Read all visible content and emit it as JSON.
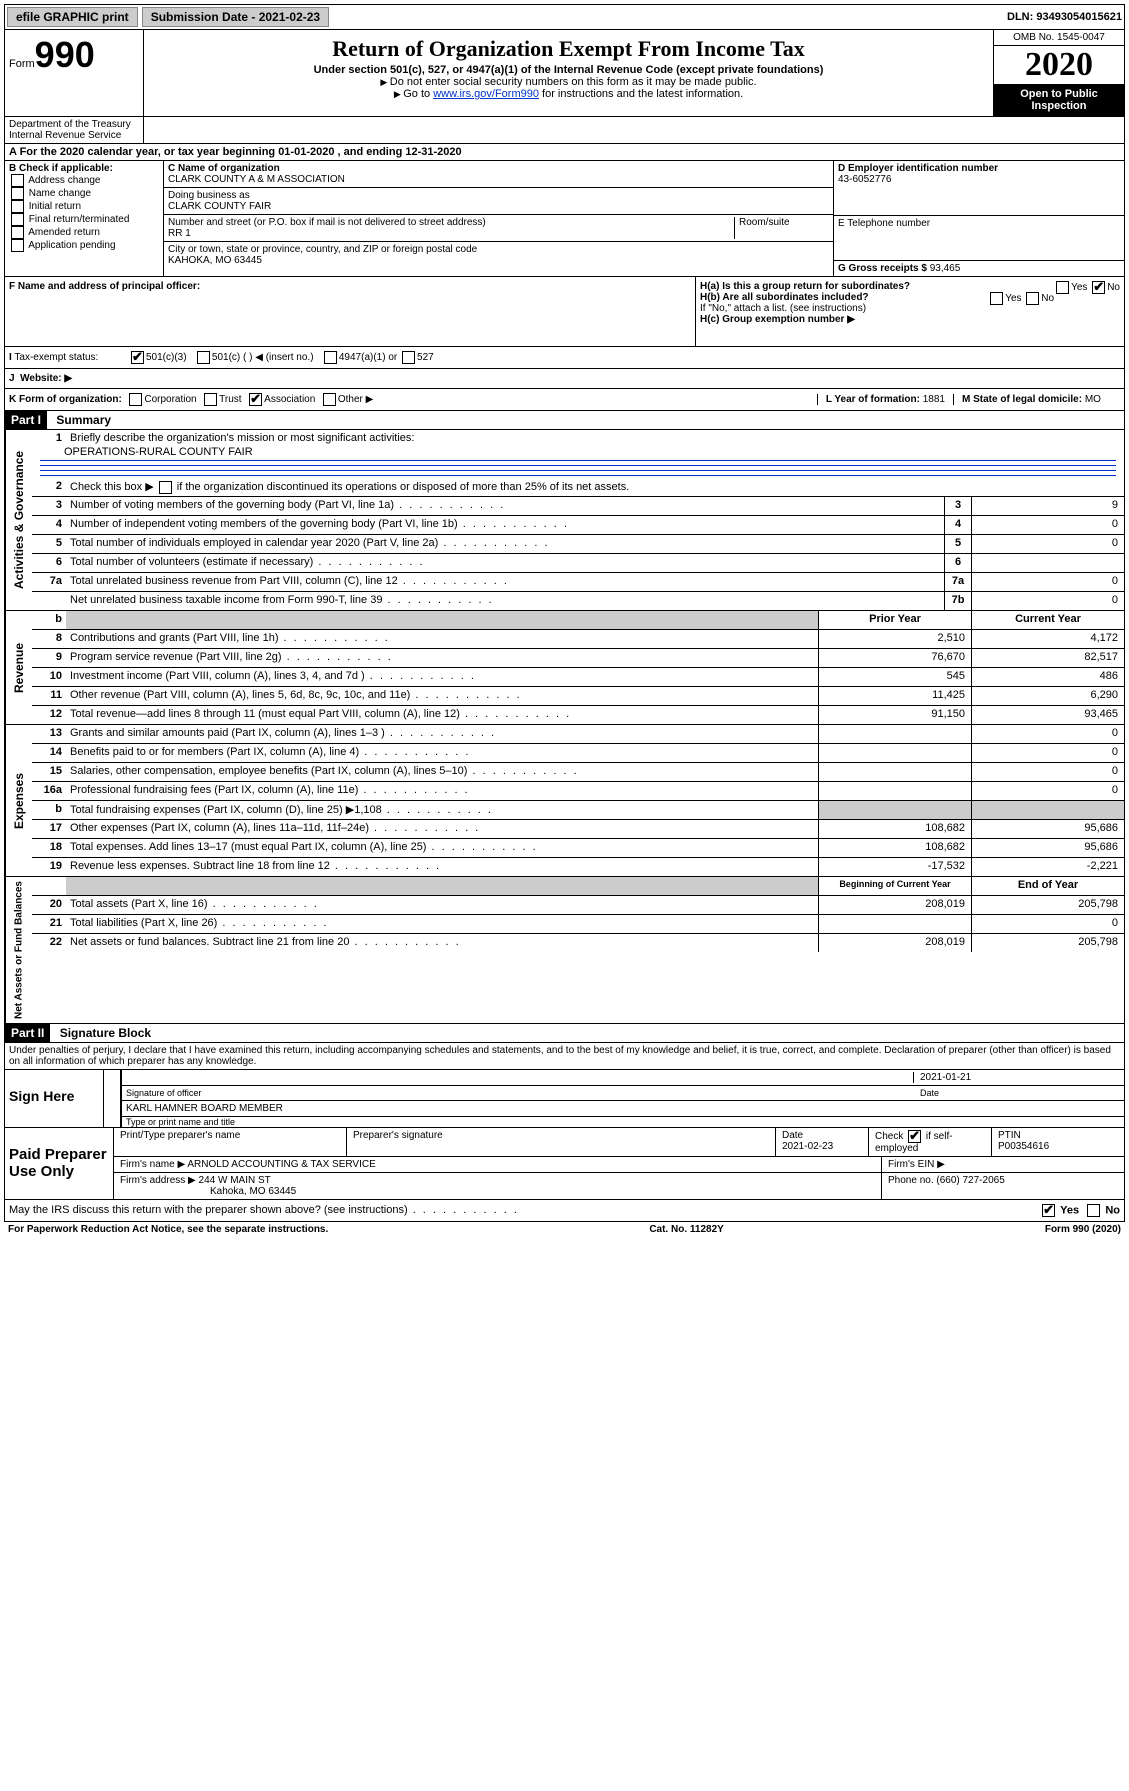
{
  "topbar": {
    "efile": "efile GRAPHIC print",
    "submission_label": "Submission Date - 2021-02-23",
    "dln": "DLN: 93493054015621"
  },
  "header": {
    "form_label": "Form",
    "form_num": "990",
    "title": "Return of Organization Exempt From Income Tax",
    "sub": "Under section 501(c), 527, or 4947(a)(1) of the Internal Revenue Code (except private foundations)",
    "note1": "Do not enter social security numbers on this form as it may be made public.",
    "note2_pre": "Go to ",
    "note2_link": "www.irs.gov/Form990",
    "note2_post": " for instructions and the latest information.",
    "dept": "Department of the Treasury\nInternal Revenue Service",
    "omb": "OMB No. 1545-0047",
    "year": "2020",
    "inspect": "Open to Public Inspection"
  },
  "row_a": "A For the 2020 calendar year, or tax year beginning 01-01-2020    , and ending 12-31-2020",
  "col_b": {
    "label": "B Check if applicable:",
    "opts": [
      "Address change",
      "Name change",
      "Initial return",
      "Final return/terminated",
      "Amended return",
      "Application pending"
    ]
  },
  "col_c": {
    "name_lbl": "C Name of organization",
    "name": "CLARK COUNTY A & M ASSOCIATION",
    "dba_lbl": "Doing business as",
    "dba": "CLARK COUNTY FAIR",
    "addr_lbl": "Number and street (or P.O. box if mail is not delivered to street address)",
    "addr": "RR 1",
    "room_lbl": "Room/suite",
    "city_lbl": "City or town, state or province, country, and ZIP or foreign postal code",
    "city": "KAHOKA, MO  63445"
  },
  "col_d": {
    "ein_lbl": "D Employer identification number",
    "ein": "43-6052776",
    "phone_lbl": "E Telephone number",
    "gross_lbl": "G Gross receipts $ ",
    "gross": "93,465"
  },
  "row_f": {
    "f_lbl": "F  Name and address of principal officer:",
    "ha": "H(a)  Is this a group return for subordinates?",
    "hb": "H(b)  Are all subordinates included?",
    "hb_note": "If \"No,\" attach a list. (see instructions)",
    "hc": "H(c)  Group exemption number ▶"
  },
  "row_i": {
    "tax_lbl": "Tax-exempt status:",
    "o501c3": "501(c)(3)",
    "o501c": "501(c) (  ) ◀ (insert no.)",
    "o4947": "4947(a)(1) or",
    "o527": "527"
  },
  "row_j": "Website: ▶",
  "row_k": {
    "k_lbl": "K Form of organization:",
    "corp": "Corporation",
    "trust": "Trust",
    "assoc": "Association",
    "other": "Other ▶",
    "l_lbl": "L Year of formation: ",
    "l_val": "1881",
    "m_lbl": "M State of legal domicile: ",
    "m_val": "MO"
  },
  "part1": {
    "hdr": "Part I",
    "title": "Summary",
    "l1": "Briefly describe the organization's mission or most significant activities:",
    "l1_val": "OPERATIONS-RURAL COUNTY FAIR",
    "l2": "Check this box ▶         if the organization discontinued its operations or disposed of more than 25% of its net assets.",
    "lines": [
      {
        "n": "3",
        "t": "Number of voting members of the governing body (Part VI, line 1a)",
        "c": "3",
        "v": "9"
      },
      {
        "n": "4",
        "t": "Number of independent voting members of the governing body (Part VI, line 1b)",
        "c": "4",
        "v": "0"
      },
      {
        "n": "5",
        "t": "Total number of individuals employed in calendar year 2020 (Part V, line 2a)",
        "c": "5",
        "v": "0"
      },
      {
        "n": "6",
        "t": "Total number of volunteers (estimate if necessary)",
        "c": "6",
        "v": ""
      },
      {
        "n": "7a",
        "t": "Total unrelated business revenue from Part VIII, column (C), line 12",
        "c": "7a",
        "v": "0"
      },
      {
        "n": "",
        "t": "Net unrelated business taxable income from Form 990-T, line 39",
        "c": "7b",
        "v": "0"
      }
    ],
    "col_hdr_b": "b",
    "col_hdr_prior": "Prior Year",
    "col_hdr_curr": "Current Year",
    "rev": [
      {
        "n": "8",
        "t": "Contributions and grants (Part VIII, line 1h)",
        "p": "2,510",
        "c": "4,172"
      },
      {
        "n": "9",
        "t": "Program service revenue (Part VIII, line 2g)",
        "p": "76,670",
        "c": "82,517"
      },
      {
        "n": "10",
        "t": "Investment income (Part VIII, column (A), lines 3, 4, and 7d )",
        "p": "545",
        "c": "486"
      },
      {
        "n": "11",
        "t": "Other revenue (Part VIII, column (A), lines 5, 6d, 8c, 9c, 10c, and 11e)",
        "p": "11,425",
        "c": "6,290"
      },
      {
        "n": "12",
        "t": "Total revenue—add lines 8 through 11 (must equal Part VIII, column (A), line 12)",
        "p": "91,150",
        "c": "93,465"
      }
    ],
    "exp": [
      {
        "n": "13",
        "t": "Grants and similar amounts paid (Part IX, column (A), lines 1–3 )",
        "p": "",
        "c": "0"
      },
      {
        "n": "14",
        "t": "Benefits paid to or for members (Part IX, column (A), line 4)",
        "p": "",
        "c": "0"
      },
      {
        "n": "15",
        "t": "Salaries, other compensation, employee benefits (Part IX, column (A), lines 5–10)",
        "p": "",
        "c": "0"
      },
      {
        "n": "16a",
        "t": "Professional fundraising fees (Part IX, column (A), line 11e)",
        "p": "",
        "c": "0"
      },
      {
        "n": "b",
        "t": "Total fundraising expenses (Part IX, column (D), line 25) ▶1,108",
        "p": "grey",
        "c": "grey"
      },
      {
        "n": "17",
        "t": "Other expenses (Part IX, column (A), lines 11a–11d, 11f–24e)",
        "p": "108,682",
        "c": "95,686"
      },
      {
        "n": "18",
        "t": "Total expenses. Add lines 13–17 (must equal Part IX, column (A), line 25)",
        "p": "108,682",
        "c": "95,686"
      },
      {
        "n": "19",
        "t": "Revenue less expenses. Subtract line 18 from line 12",
        "p": "-17,532",
        "c": "-2,221"
      }
    ],
    "col_hdr_beg": "Beginning of Current Year",
    "col_hdr_end": "End of Year",
    "net": [
      {
        "n": "20",
        "t": "Total assets (Part X, line 16)",
        "p": "208,019",
        "c": "205,798"
      },
      {
        "n": "21",
        "t": "Total liabilities (Part X, line 26)",
        "p": "",
        "c": "0"
      },
      {
        "n": "22",
        "t": "Net assets or fund balances. Subtract line 21 from line 20",
        "p": "208,019",
        "c": "205,798"
      }
    ]
  },
  "vtabs": {
    "gov": "Activities & Governance",
    "rev": "Revenue",
    "exp": "Expenses",
    "net": "Net Assets or Fund Balances"
  },
  "part2": {
    "hdr": "Part II",
    "title": "Signature Block",
    "perjury": "Under penalties of perjury, I declare that I have examined this return, including accompanying schedules and statements, and to the best of my knowledge and belief, it is true, correct, and complete. Declaration of preparer (other than officer) is based on all information of which preparer has any knowledge."
  },
  "sign": {
    "here": "Sign Here",
    "sig_off": "Signature of officer",
    "date1": "2021-01-21",
    "date_lbl": "Date",
    "name": "KARL HAMNER  BOARD MEMBER",
    "name_lbl": "Type or print name and title"
  },
  "paid": {
    "lbl": "Paid Preparer Use Only",
    "prep_name_lbl": "Print/Type preparer's name",
    "prep_sig_lbl": "Preparer's signature",
    "date_lbl": "Date",
    "date": "2021-02-23",
    "check_lbl": "Check         if self-employed",
    "ptin_lbl": "PTIN",
    "ptin": "P00354616",
    "firm_name_lbl": "Firm's name    ▶ ",
    "firm_name": "ARNOLD ACCOUNTING & TAX SERVICE",
    "firm_ein_lbl": "Firm's EIN ▶",
    "firm_addr_lbl": "Firm's address ▶ ",
    "firm_addr1": "244 W MAIN ST",
    "firm_addr2": "Kahoka, MO  63445",
    "phone_lbl": "Phone no. ",
    "phone": "(660) 727-2065"
  },
  "discuss": "May the IRS discuss this return with the preparer shown above? (see instructions)",
  "footer": {
    "pra": "For Paperwork Reduction Act Notice, see the separate instructions.",
    "cat": "Cat. No. 11282Y",
    "form": "Form 990 (2020)"
  },
  "yes": "Yes",
  "no": "No"
}
